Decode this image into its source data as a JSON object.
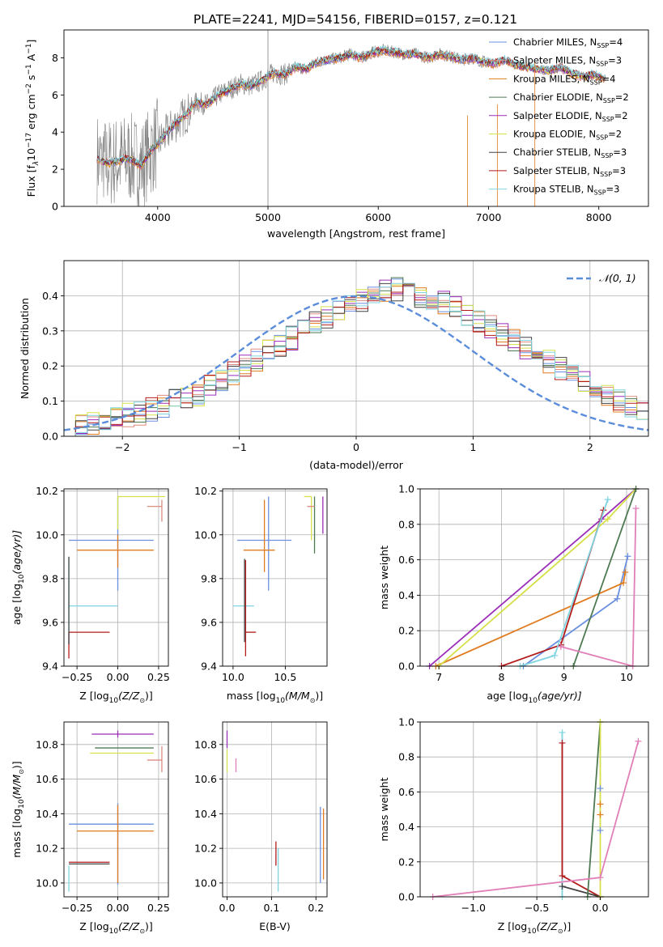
{
  "figure": {
    "title": "PLATE=2241, MJD=54156, FIBERID=0157, z=0.121"
  },
  "colors": {
    "Chabrier MILES": "#6a8fe0",
    "Salpeter MILES": "#dd8a80",
    "Kroupa MILES": "#e07b1e",
    "Chabrier ELODIE": "#4e7a52",
    "Salpeter ELODIE": "#9b2fb8",
    "Kroupa ELODIE": "#d6e04a",
    "Chabrier STELIB": "#444444",
    "Salpeter STELIB": "#b31b1b",
    "Kroupa STELIB": "#7fd4e0",
    "data": "#808080",
    "normal": "#5b8ddb",
    "pink": "#e07fb8"
  },
  "chart_data": [
    {
      "id": "spectrum",
      "type": "line",
      "title": "PLATE=2241, MJD=54156, FIBERID=0157, z=0.121",
      "xlabel": "wavelength [Angstrom, rest frame]",
      "ylabel_parts": [
        "Flux [f",
        "λ",
        "10",
        "−17",
        " erg cm",
        "−2",
        " s",
        "−1",
        " A",
        "−1",
        "]"
      ],
      "xlim": [
        3150,
        8450
      ],
      "ylim": [
        0,
        9.5
      ],
      "xticks": [
        4000,
        5000,
        6000,
        7000,
        8000
      ],
      "yticks": [
        0,
        2,
        4,
        6,
        8
      ],
      "grid": false,
      "legend_position": "top-right",
      "legend": [
        {
          "name": "Chabrier MILES",
          "n": "4"
        },
        {
          "name": "Salpeter MILES",
          "n": "3"
        },
        {
          "name": "Kroupa MILES",
          "n": "4"
        },
        {
          "name": "Chabrier ELODIE",
          "n": "2"
        },
        {
          "name": "Salpeter ELODIE",
          "n": "2"
        },
        {
          "name": "Kroupa ELODIE",
          "n": "2"
        },
        {
          "name": "Chabrier STELIB",
          "n": "3"
        },
        {
          "name": "Salpeter STELIB",
          "n": "3"
        },
        {
          "name": "Kroupa STELIB",
          "n": "3"
        }
      ],
      "legend_suffix": ", N",
      "legend_sub": "SSP",
      "legend_eq": "=",
      "model_curve": {
        "x": [
          3450,
          3550,
          3650,
          3750,
          3850,
          3950,
          4050,
          4150,
          4250,
          4350,
          4450,
          4550,
          4650,
          4750,
          4850,
          4950,
          5050,
          5150,
          5250,
          5350,
          5450,
          5550,
          5650,
          5750,
          5850,
          5950,
          6050,
          6150,
          6250,
          6350,
          6450,
          6550,
          6650,
          6750,
          6850,
          6950,
          7050,
          7150,
          7250,
          7350,
          7450,
          7550,
          7650,
          7750,
          7850,
          7950,
          8050
        ],
        "y": [
          2.6,
          2.3,
          2.5,
          2.6,
          2.2,
          3.1,
          3.7,
          4.4,
          4.9,
          5.6,
          5.5,
          6.0,
          6.3,
          6.6,
          6.5,
          6.8,
          7.2,
          7.1,
          7.5,
          7.4,
          7.8,
          7.9,
          8.0,
          8.2,
          8.0,
          8.3,
          8.4,
          8.3,
          8.2,
          8.2,
          8.0,
          8.2,
          8.1,
          7.9,
          8.0,
          7.8,
          7.7,
          7.9,
          7.6,
          7.5,
          7.4,
          7.3,
          7.5,
          7.2,
          7.0,
          7.1,
          6.9
        ]
      }
    },
    {
      "id": "residuals",
      "type": "histogram",
      "xlabel": "(data-model)/error",
      "ylabel": "Normed distribution",
      "xlim": [
        -2.5,
        2.5
      ],
      "ylim": [
        0,
        0.5
      ],
      "xticks": [
        -2,
        -1,
        0,
        1,
        2
      ],
      "xtick_labels": [
        "−2",
        "−1",
        "0",
        "1",
        "2"
      ],
      "yticks": [
        0.0,
        0.1,
        0.2,
        0.3,
        0.4
      ],
      "grid": true,
      "legend_position": "top-right",
      "legend_label": "𝒩(0, 1)",
      "bin_edges_start": -2.5,
      "bin_width": 0.1,
      "hist_base": [
        0.03,
        0.035,
        0.04,
        0.045,
        0.05,
        0.06,
        0.065,
        0.075,
        0.085,
        0.1,
        0.11,
        0.12,
        0.14,
        0.16,
        0.18,
        0.2,
        0.22,
        0.24,
        0.26,
        0.28,
        0.3,
        0.32,
        0.34,
        0.36,
        0.375,
        0.39,
        0.4,
        0.41,
        0.42,
        0.41,
        0.4,
        0.39,
        0.38,
        0.37,
        0.35,
        0.33,
        0.31,
        0.29,
        0.27,
        0.25,
        0.23,
        0.21,
        0.19,
        0.17,
        0.15,
        0.13,
        0.115,
        0.1,
        0.085,
        0.07
      ]
    },
    {
      "id": "age-vs-Z",
      "type": "errorbar",
      "xlabel": "Z [log",
      "xlabel_sub": "10",
      "xlabel_rest": "(Z/Z",
      "xlabel_end": ")]",
      "ylabel": "age  [log",
      "ylabel_sub": "10",
      "ylabel_rest": "(age/yr)]",
      "xlim": [
        -0.33,
        0.31
      ],
      "ylim": [
        9.4,
        10.21
      ],
      "xticks": [
        -0.25,
        0.0,
        0.25
      ],
      "xtick_labels": [
        "−0.25",
        "0.00",
        "0.25"
      ],
      "yticks": [
        9.4,
        9.6,
        9.8,
        10.0,
        10.2
      ],
      "grid": true,
      "points": [
        {
          "series": "Chabrier MILES",
          "x": 0.0,
          "y": 9.975,
          "xerr": [
            0.3,
            0.22
          ],
          "yerr": [
            0.23,
            0.2
          ]
        },
        {
          "series": "Kroupa MILES",
          "x": 0.0,
          "y": 9.93,
          "xerr": [
            0.25,
            0.22
          ],
          "yerr": [
            0.08,
            0.07
          ]
        },
        {
          "series": "Kroupa ELODIE",
          "x": 0.0,
          "y": 10.175,
          "xerr": [
            0.0,
            0.29
          ],
          "yerr": [
            0.15,
            0.0
          ]
        },
        {
          "series": "Salpeter MILES",
          "x": 0.27,
          "y": 10.13,
          "xerr": [
            0.09,
            0.0
          ],
          "yerr": [
            0.07,
            0.03
          ]
        },
        {
          "series": "Kroupa STELIB",
          "x": -0.3,
          "y": 9.675,
          "xerr": [
            0.0,
            0.3
          ],
          "yerr": [
            0.18,
            0.22
          ]
        },
        {
          "series": "Salpeter STELIB",
          "x": -0.3,
          "y": 9.555,
          "xerr": [
            0.0,
            0.25
          ],
          "yerr": [
            0.12,
            0.0
          ]
        },
        {
          "series": "Chabrier STELIB",
          "x": -0.3,
          "y": 9.65,
          "xerr": [
            0.0,
            0.0
          ],
          "yerr": [
            0.15,
            0.25
          ]
        }
      ]
    },
    {
      "id": "age-vs-mass",
      "type": "errorbar",
      "xlabel": "mass [log",
      "xlabel_sub": "10",
      "xlabel_rest": "(M/M",
      "xlabel_end": ")]",
      "xlim": [
        9.9,
        10.9
      ],
      "ylim": [
        9.4,
        10.21
      ],
      "xticks": [
        10.0,
        10.5
      ],
      "xtick_labels": [
        "10.0",
        "10.5"
      ],
      "yticks": [
        9.4,
        9.6,
        9.8,
        10.0,
        10.2
      ],
      "grid": true,
      "points": [
        {
          "series": "Chabrier MILES",
          "x": 10.34,
          "y": 9.975,
          "xerr": [
            0.3,
            0.22
          ],
          "yerr": [
            0.23,
            0.2
          ]
        },
        {
          "series": "Kroupa MILES",
          "x": 10.3,
          "y": 9.93,
          "xerr": [
            0.2,
            0.1
          ],
          "yerr": [
            0.1,
            0.23
          ]
        },
        {
          "series": "Kroupa ELODIE",
          "x": 10.75,
          "y": 10.175,
          "xerr": [
            0.07,
            0.0
          ],
          "yerr": [
            0.2,
            0.0
          ]
        },
        {
          "series": "Salpeter ELODIE",
          "x": 10.86,
          "y": 10.175,
          "xerr": [
            0.0,
            0.0
          ],
          "yerr": [
            0.17,
            0.0
          ]
        },
        {
          "series": "Chabrier ELODIE",
          "x": 10.78,
          "y": 10.175,
          "xerr": [
            0.0,
            0.0
          ],
          "yerr": [
            0.26,
            0.0
          ]
        },
        {
          "series": "Salpeter MILES",
          "x": 10.71,
          "y": 10.13,
          "xerr": [
            0.0,
            0.07
          ],
          "yerr": [
            0.0,
            0.0
          ]
        },
        {
          "series": "Kroupa STELIB",
          "x": 10.1,
          "y": 9.675,
          "xerr": [
            0.1,
            0.1
          ],
          "yerr": [
            0.0,
            0.0
          ]
        },
        {
          "series": "Salpeter STELIB",
          "x": 10.12,
          "y": 9.555,
          "xerr": [
            0.0,
            0.1
          ],
          "yerr": [
            0.11,
            0.33
          ]
        },
        {
          "series": "Chabrier STELIB",
          "x": 10.11,
          "y": 9.65,
          "xerr": [
            0.0,
            0.0
          ],
          "yerr": [
            0.14,
            0.24
          ]
        }
      ]
    },
    {
      "id": "weight-vs-age",
      "type": "line",
      "xlabel": "age  [log",
      "xlabel_sub": "10",
      "xlabel_rest": "(age/yr)]",
      "ylabel": "mass weight",
      "xlim": [
        6.7,
        10.35
      ],
      "ylim": [
        0,
        1
      ],
      "xticks": [
        7,
        8,
        9,
        10
      ],
      "yticks": [
        0.0,
        0.2,
        0.4,
        0.6,
        0.8,
        1.0
      ],
      "grid": true,
      "lines": [
        {
          "series": "Chabrier MILES",
          "x": [
            8.35,
            9.85,
            10.02
          ],
          "y": [
            0.0,
            0.38,
            0.62
          ]
        },
        {
          "series": "Kroupa MILES",
          "x": [
            6.95,
            9.95,
            9.98
          ],
          "y": [
            0.0,
            0.47,
            0.53
          ]
        },
        {
          "series": "Salpeter ELODIE",
          "x": [
            6.85,
            9.6,
            10.15
          ],
          "y": [
            0.0,
            0.83,
            1.0
          ]
        },
        {
          "series": "Kroupa ELODIE",
          "x": [
            7.0,
            9.7,
            10.15
          ],
          "y": [
            0.0,
            0.83,
            1.0
          ]
        },
        {
          "series": "Chabrier ELODIE",
          "x": [
            9.15,
            10.15
          ],
          "y": [
            0.0,
            1.0
          ]
        },
        {
          "series": "Salpeter STELIB",
          "x": [
            8.0,
            8.95,
            9.63
          ],
          "y": [
            0.0,
            0.12,
            0.88
          ]
        },
        {
          "series": "Kroupa STELIB",
          "x": [
            8.3,
            8.85,
            9.7
          ],
          "y": [
            0.0,
            0.06,
            0.94
          ]
        },
        {
          "series": "pink",
          "x": [
            8.95,
            10.1,
            10.15
          ],
          "y": [
            0.11,
            0.0,
            0.89
          ]
        }
      ]
    },
    {
      "id": "mass-vs-Z",
      "type": "errorbar",
      "xlabel": "Z [log",
      "xlabel_sub": "10",
      "xlabel_rest": "(Z/Z",
      "xlabel_end": ")]",
      "ylabel": "mass [log",
      "ylabel_sub": "10",
      "ylabel_rest": "(M/M",
      "ylabel_end": ")]",
      "xlim": [
        -0.33,
        0.31
      ],
      "ylim": [
        9.92,
        10.93
      ],
      "xticks": [
        -0.25,
        0.0,
        0.25
      ],
      "xtick_labels": [
        "−0.25",
        "0.00",
        "0.25"
      ],
      "yticks": [
        10.0,
        10.2,
        10.4,
        10.6,
        10.8
      ],
      "grid": true,
      "points": [
        {
          "series": "Salpeter ELODIE",
          "x": 0.0,
          "y": 10.86,
          "xerr": [
            0.16,
            0.22
          ],
          "yerr": [
            0.02,
            0.02
          ]
        },
        {
          "series": "Chabrier ELODIE",
          "x": 0.0,
          "y": 10.78,
          "xerr": [
            0.14,
            0.22
          ],
          "yerr": [
            0.0,
            0.0
          ]
        },
        {
          "series": "Kroupa ELODIE",
          "x": 0.0,
          "y": 10.75,
          "xerr": [
            0.17,
            0.22
          ],
          "yerr": [
            0.0,
            0.0
          ]
        },
        {
          "series": "Salpeter MILES",
          "x": 0.27,
          "y": 10.71,
          "xerr": [
            0.09,
            0.0
          ],
          "yerr": [
            0.07,
            0.08
          ]
        },
        {
          "series": "Chabrier MILES",
          "x": 0.0,
          "y": 10.34,
          "xerr": [
            0.3,
            0.22
          ],
          "yerr": [
            0.35,
            0.12
          ]
        },
        {
          "series": "Kroupa MILES",
          "x": 0.0,
          "y": 10.3,
          "xerr": [
            0.25,
            0.22
          ],
          "yerr": [
            0.3,
            0.15
          ]
        },
        {
          "series": "Salpeter STELIB",
          "x": -0.3,
          "y": 10.12,
          "xerr": [
            0.0,
            0.25
          ],
          "yerr": [
            0.0,
            0.0
          ]
        },
        {
          "series": "Chabrier STELIB",
          "x": -0.3,
          "y": 10.11,
          "xerr": [
            0.0,
            0.25
          ],
          "yerr": [
            0.0,
            0.0
          ]
        },
        {
          "series": "Kroupa STELIB",
          "x": -0.3,
          "y": 10.1,
          "xerr": [
            0.0,
            0.0
          ],
          "yerr": [
            0.15,
            0.0
          ]
        }
      ]
    },
    {
      "id": "mass-vs-ebv",
      "type": "errorbar",
      "xlabel": "E(B-V)",
      "xlim": [
        -0.01,
        0.225
      ],
      "ylim": [
        9.92,
        10.93
      ],
      "xticks": [
        0.0,
        0.1,
        0.2
      ],
      "xtick_labels": [
        "0.0",
        "0.1",
        "0.2"
      ],
      "yticks": [
        10.0,
        10.2,
        10.4,
        10.6,
        10.8
      ],
      "grid": true,
      "points": [
        {
          "series": "Salpeter ELODIE",
          "x": 0.0,
          "y": 10.83,
          "xerr": [
            0.0,
            0.0
          ],
          "yerr": [
            0.05,
            0.05
          ]
        },
        {
          "series": "Kroupa ELODIE",
          "x": 0.0,
          "y": 10.72,
          "xerr": [
            0.0,
            0.0
          ],
          "yerr": [
            0.08,
            0.05
          ]
        },
        {
          "series": "pink",
          "x": 0.02,
          "y": 10.72,
          "xerr": [
            0.0,
            0.0
          ],
          "yerr": [
            0.08,
            0.0
          ]
        },
        {
          "series": "Salpeter STELIB",
          "x": 0.11,
          "y": 10.1,
          "xerr": [
            0.0,
            0.0
          ],
          "yerr": [
            0.0,
            0.14
          ]
        },
        {
          "series": "Kroupa STELIB",
          "x": 0.115,
          "y": 10.05,
          "xerr": [
            0.0,
            0.0
          ],
          "yerr": [
            0.1,
            0.15
          ]
        },
        {
          "series": "Chabrier MILES",
          "x": 0.21,
          "y": 10.2,
          "xerr": [
            0.0,
            0.0
          ],
          "yerr": [
            0.2,
            0.24
          ]
        },
        {
          "series": "Kroupa MILES",
          "x": 0.217,
          "y": 10.22,
          "xerr": [
            0.0,
            0.0
          ],
          "yerr": [
            0.2,
            0.21
          ]
        }
      ]
    },
    {
      "id": "weight-vs-Z",
      "type": "line",
      "xlabel": "Z [log",
      "xlabel_sub": "10",
      "xlabel_rest": "(Z/Z",
      "xlabel_end": ")]",
      "ylabel": "mass weight",
      "xlim": [
        -1.42,
        0.38
      ],
      "ylim": [
        0,
        1
      ],
      "xticks": [
        -1.0,
        -0.5,
        0.0
      ],
      "xtick_labels": [
        "−1.0",
        "−0.5",
        "0.0"
      ],
      "yticks": [
        0.0,
        0.2,
        0.4,
        0.6,
        0.8,
        1.0
      ],
      "grid": true,
      "lines": [
        {
          "series": "Kroupa STELIB",
          "x": [
            -0.3,
            -0.3,
            -0.3
          ],
          "y": [
            0.0,
            0.06,
            0.94
          ]
        },
        {
          "series": "Salpeter STELIB",
          "x": [
            -0.3,
            -0.3,
            0.0
          ],
          "y": [
            0.88,
            0.12,
            0.0
          ]
        },
        {
          "series": "Chabrier STELIB",
          "x": [
            -0.3,
            0.0
          ],
          "y": [
            0.06,
            0.0
          ]
        },
        {
          "series": "Chabrier ELODIE",
          "x": [
            -0.1,
            0.0
          ],
          "y": [
            0.0,
            1.0
          ]
        },
        {
          "series": "Kroupa ELODIE",
          "x": [
            0.0,
            0.0
          ],
          "y": [
            0.0,
            1.0
          ]
        },
        {
          "series": "pink",
          "x": [
            -1.32,
            0.0,
            0.3
          ],
          "y": [
            0.0,
            0.11,
            0.89
          ]
        }
      ],
      "markers": [
        {
          "series": "Chabrier MILES",
          "x": 0.0,
          "y": [
            0.38,
            0.62
          ]
        },
        {
          "series": "Kroupa MILES",
          "x": 0.0,
          "y": [
            0.47,
            0.53
          ]
        }
      ]
    }
  ]
}
